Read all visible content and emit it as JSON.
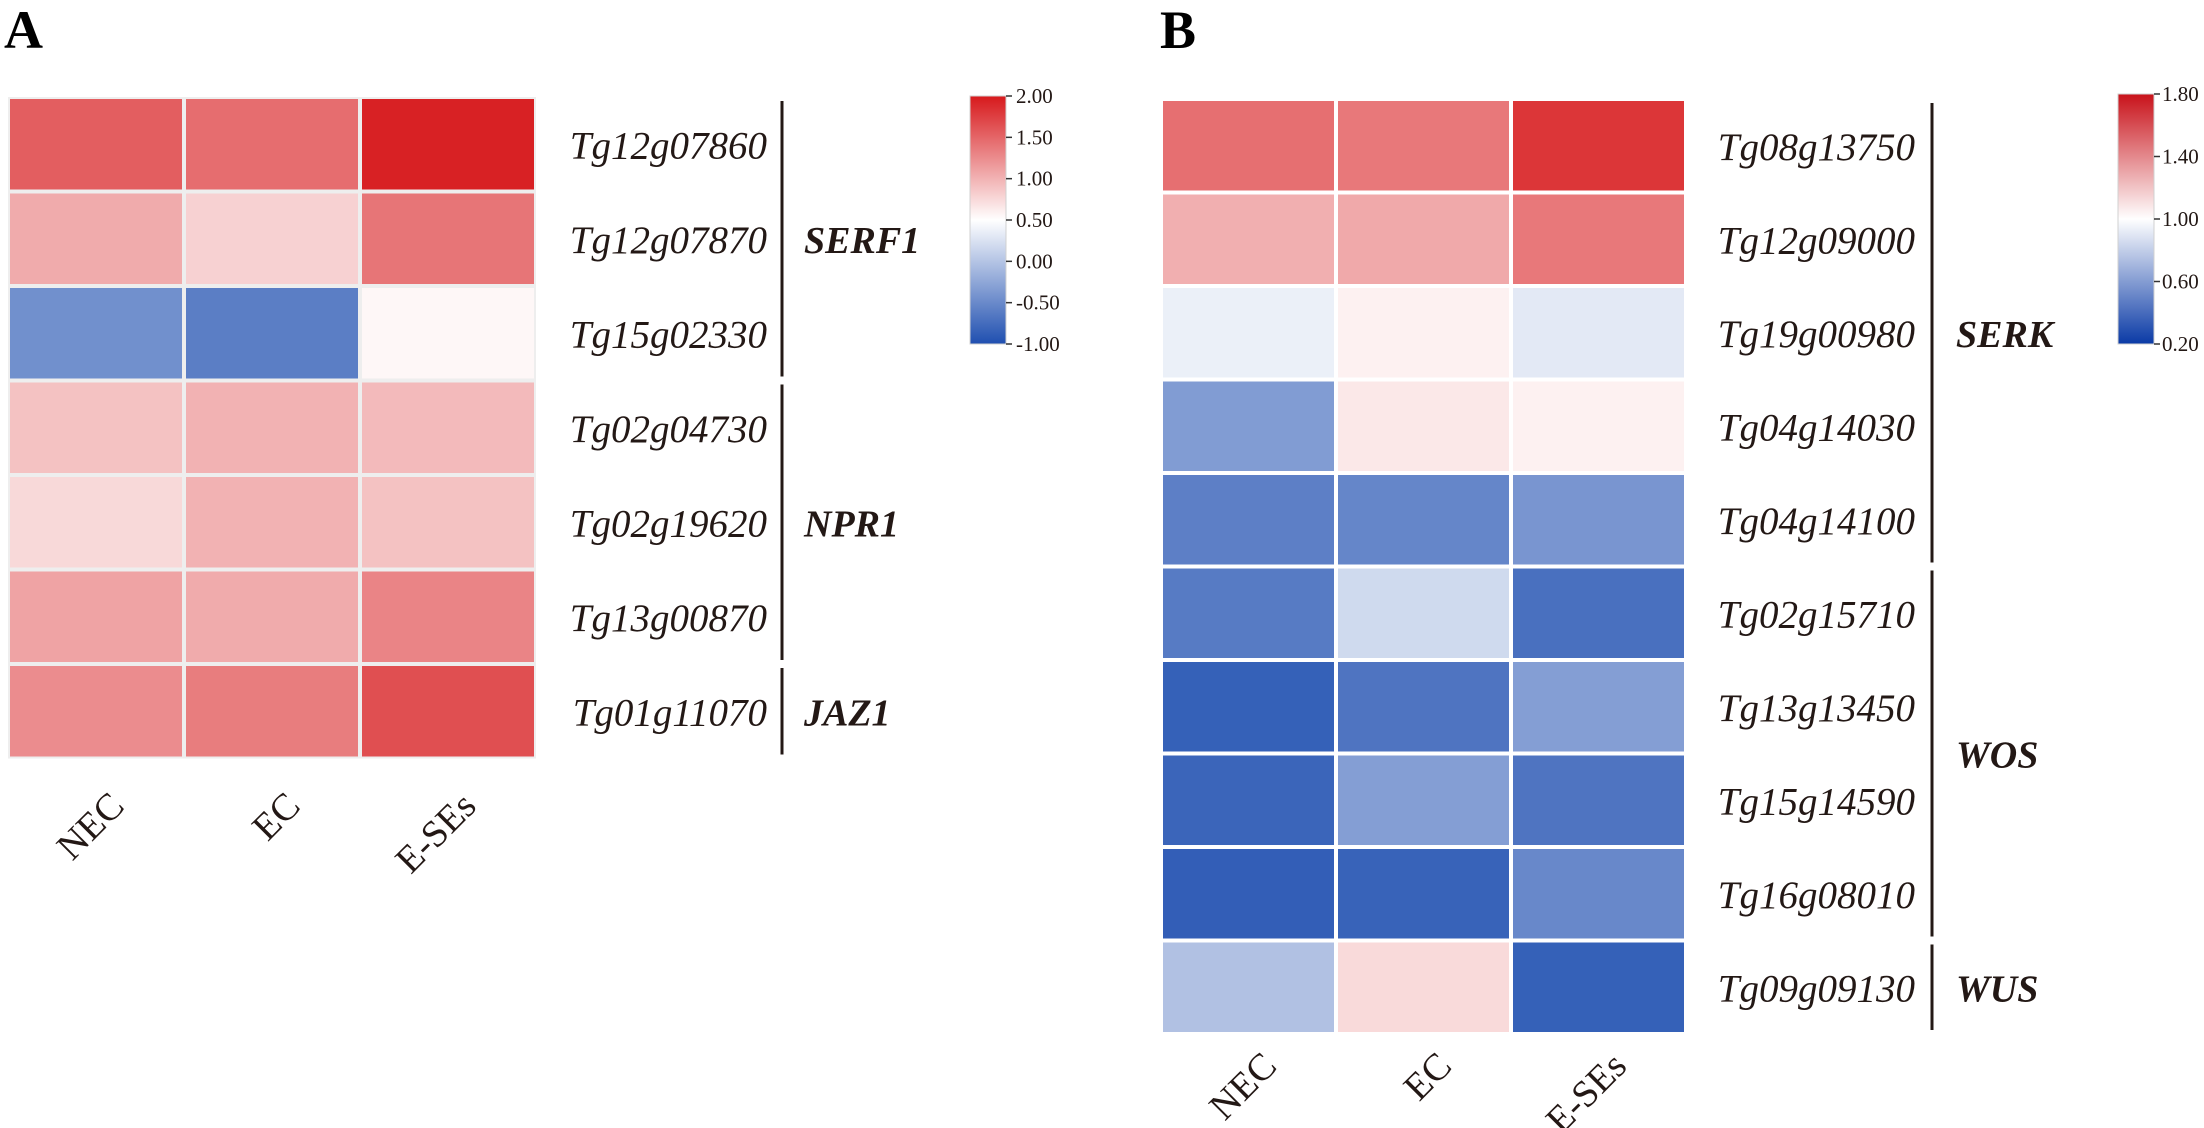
{
  "chart_data": [
    {
      "type": "heatmap",
      "panel": "A",
      "columns": [
        "NEC",
        "EC",
        "E-SEs"
      ],
      "rows": [
        "Tg12g07860",
        "Tg12g07870",
        "Tg15g02330",
        "Tg02g04730",
        "Tg02g19620",
        "Tg13g00870",
        "Tg01g11070"
      ],
      "values": [
        [
          1.55,
          1.45,
          1.95
        ],
        [
          1.05,
          0.8,
          1.4
        ],
        [
          -0.45,
          -0.6,
          0.55
        ],
        [
          0.9,
          1.0,
          0.95
        ],
        [
          0.75,
          1.0,
          0.9
        ],
        [
          1.1,
          1.05,
          1.3
        ],
        [
          1.25,
          1.35,
          1.65
        ]
      ],
      "groups": [
        {
          "label": "SERF1",
          "start": 0,
          "end": 2
        },
        {
          "label": "NPR1",
          "start": 3,
          "end": 5
        },
        {
          "label": "JAZ1",
          "start": 6,
          "end": 6
        }
      ],
      "colorbar": {
        "min": -1.0,
        "max": 2.0,
        "center": 0.5,
        "ticks": [
          2.0,
          1.5,
          1.0,
          0.5,
          0.0,
          -0.5,
          -1.0
        ],
        "tick_labels": [
          "2.00",
          "1.50",
          "1.00",
          "0.50",
          "0.00",
          "-0.50",
          "-1.00"
        ]
      }
    },
    {
      "type": "heatmap",
      "panel": "B",
      "columns": [
        "NEC",
        "EC",
        "E-SEs"
      ],
      "rows": [
        "Tg08g13750",
        "Tg12g09000",
        "Tg19g00980",
        "Tg04g14030",
        "Tg04g14100",
        "Tg02g15710",
        "Tg13g13450",
        "Tg15g14590",
        "Tg16g08010",
        "Tg09g09130"
      ],
      "values": [
        [
          1.5,
          1.47,
          1.7
        ],
        [
          1.28,
          1.3,
          1.47
        ],
        [
          0.93,
          1.05,
          0.9
        ],
        [
          0.55,
          1.08,
          1.05
        ],
        [
          0.42,
          0.45,
          0.52
        ],
        [
          0.4,
          0.83,
          0.35
        ],
        [
          0.28,
          0.37,
          0.56
        ],
        [
          0.3,
          0.56,
          0.37
        ],
        [
          0.27,
          0.29,
          0.46
        ],
        [
          0.72,
          1.13,
          0.28
        ]
      ],
      "groups": [
        {
          "label": "SERK",
          "start": 0,
          "end": 4
        },
        {
          "label": "WOS",
          "start": 5,
          "end": 8
        },
        {
          "label": "WUS",
          "start": 9,
          "end": 9
        }
      ],
      "colorbar": {
        "min": 0.2,
        "max": 1.8,
        "center": 1.0,
        "ticks": [
          1.8,
          1.4,
          1.0,
          0.6,
          0.2
        ],
        "tick_labels": [
          "1.80",
          "1.40",
          "1.00",
          "0.60",
          "0.20"
        ]
      }
    }
  ],
  "colors": {
    "high": "#d7191c",
    "mid": "#ffffff",
    "low": "#1f4fb0",
    "bracket": "#231815"
  }
}
